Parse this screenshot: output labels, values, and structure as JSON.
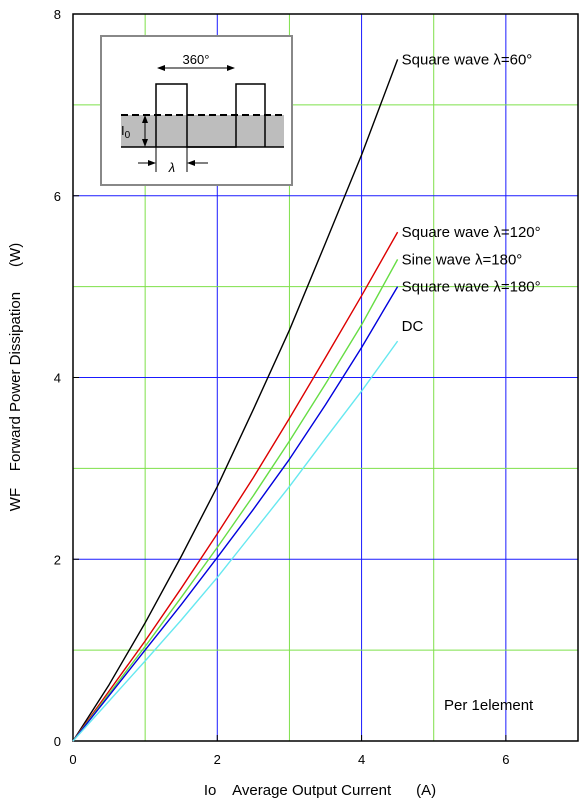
{
  "chart_data": {
    "type": "line",
    "xlabel": "Io    Average Output Current      (A)",
    "ylabel": "WF    Forward Power Dissipation      (W)",
    "xlim": [
      0,
      7
    ],
    "ylim": [
      0,
      8
    ],
    "x_ticks": [
      "0",
      "2",
      "4",
      "6"
    ],
    "y_ticks": [
      "0",
      "2",
      "4",
      "6",
      "8"
    ],
    "x_tick_values": [
      0,
      2,
      4,
      6
    ],
    "y_tick_values": [
      0,
      2,
      4,
      6,
      8
    ],
    "grid": true,
    "annotation": "Per 1element",
    "series": [
      {
        "name": "Square wave λ=60°",
        "color": "#000000",
        "x": [
          0,
          0.5,
          1,
          1.5,
          2,
          2.5,
          3,
          3.5,
          4,
          4.5
        ],
        "y": [
          0,
          0.62,
          1.3,
          2.03,
          2.8,
          3.65,
          4.52,
          5.48,
          6.45,
          7.5
        ]
      },
      {
        "name": "Square wave λ=120°",
        "color": "#dd0000",
        "x": [
          0,
          0.5,
          1,
          1.5,
          2,
          2.5,
          3,
          3.5,
          4,
          4.5
        ],
        "y": [
          0,
          0.55,
          1.1,
          1.68,
          2.28,
          2.9,
          3.55,
          4.22,
          4.9,
          5.6
        ]
      },
      {
        "name": "Sine wave λ=180°",
        "color": "#66dd44",
        "x": [
          0,
          0.5,
          1,
          1.5,
          2,
          2.5,
          3,
          3.5,
          4,
          4.5
        ],
        "y": [
          0,
          0.52,
          1.04,
          1.58,
          2.13,
          2.7,
          3.3,
          3.93,
          4.58,
          5.3
        ]
      },
      {
        "name": "Square wave λ=180°",
        "color": "#0000dd",
        "x": [
          0,
          0.5,
          1,
          1.5,
          2,
          2.5,
          3,
          3.5,
          4,
          4.5
        ],
        "y": [
          0,
          0.5,
          1.0,
          1.5,
          2.02,
          2.55,
          3.1,
          3.7,
          4.33,
          5.0
        ]
      },
      {
        "name": "DC",
        "color": "#66e8f0",
        "x": [
          0,
          0.5,
          1,
          1.5,
          2,
          2.5,
          3,
          3.5,
          4,
          4.5
        ],
        "y": [
          0,
          0.44,
          0.88,
          1.33,
          1.8,
          2.3,
          2.8,
          3.33,
          3.85,
          4.4
        ]
      }
    ],
    "inset": {
      "period_label": "360°",
      "current_label": "I",
      "current_subscript": "0",
      "width_label": "λ"
    }
  }
}
